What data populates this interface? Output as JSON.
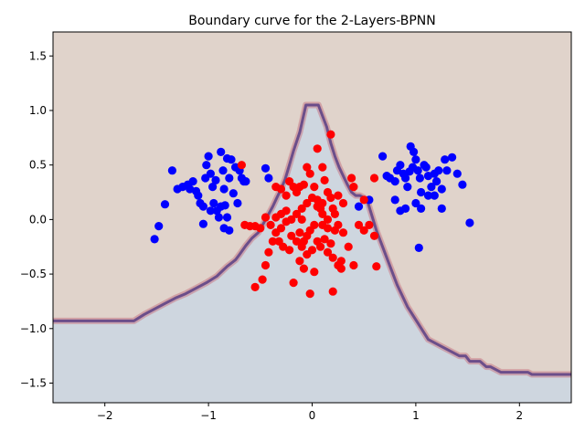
{
  "chart_data": {
    "type": "scatter",
    "title": "Boundary curve for the 2-Layers-BPNN",
    "xlabel": "",
    "ylabel": "",
    "xlim": [
      -2.5,
      2.5
    ],
    "ylim": [
      -1.68,
      1.72
    ],
    "xticks": [
      -2,
      -1,
      0,
      1,
      2
    ],
    "xtick_labels": [
      "−2",
      "−1",
      "0",
      "1",
      "2"
    ],
    "yticks": [
      -1.5,
      -1.0,
      -0.5,
      0.0,
      0.5,
      1.0,
      1.5
    ],
    "ytick_labels": [
      "−1.5",
      "−1.0",
      "−0.5",
      "0.0",
      "0.5",
      "1.0",
      "1.5"
    ],
    "grid": false,
    "legend": "none",
    "colors": {
      "upper_region": "#e0d3cb",
      "lower_region": "#ced6df",
      "boundary": "#6b4e8a",
      "class_blue": "#0000ff",
      "class_red": "#ff0000"
    },
    "boundary_curve": {
      "x": [
        -2.5,
        -1.72,
        -1.62,
        -1.52,
        -1.42,
        -1.32,
        -1.22,
        -1.12,
        -1.02,
        -0.92,
        -0.82,
        -0.74,
        -0.7,
        -0.64,
        -0.58,
        -0.52,
        -0.46,
        -0.42,
        -0.38,
        -0.34,
        -0.3,
        -0.26,
        -0.22,
        -0.18,
        -0.12,
        -0.06,
        0.06,
        0.1,
        0.14,
        0.18,
        0.22,
        0.26,
        0.3,
        0.34,
        0.38,
        0.42,
        0.46,
        0.5,
        0.54,
        0.62,
        0.72,
        0.82,
        0.92,
        1.02,
        1.12,
        1.22,
        1.32,
        1.42,
        1.48,
        1.52,
        1.62,
        1.68,
        1.72,
        1.82,
        1.92,
        2.02,
        2.08,
        2.12,
        2.22,
        2.32,
        2.48,
        2.5
      ],
      "y": [
        -0.93,
        -0.93,
        -0.87,
        -0.82,
        -0.77,
        -0.72,
        -0.68,
        -0.63,
        -0.58,
        -0.52,
        -0.43,
        -0.37,
        -0.32,
        -0.24,
        -0.17,
        -0.12,
        -0.02,
        0.05,
        0.12,
        0.2,
        0.28,
        0.37,
        0.5,
        0.63,
        0.8,
        1.05,
        1.05,
        0.95,
        0.85,
        0.7,
        0.58,
        0.48,
        0.4,
        0.32,
        0.25,
        0.22,
        0.22,
        0.2,
        0.15,
        -0.1,
        -0.35,
        -0.6,
        -0.8,
        -0.95,
        -1.1,
        -1.15,
        -1.2,
        -1.25,
        -1.25,
        -1.3,
        -1.3,
        -1.35,
        -1.35,
        -1.4,
        -1.4,
        -1.4,
        -1.4,
        -1.42,
        -1.42,
        -1.42,
        -1.42,
        -1.42
      ]
    },
    "series": [
      {
        "color": "blue",
        "points": [
          [
            -1.35,
            0.45
          ],
          [
            -1.3,
            0.28
          ],
          [
            -1.25,
            0.3
          ],
          [
            -1.2,
            0.32
          ],
          [
            -1.18,
            0.28
          ],
          [
            -1.15,
            0.35
          ],
          [
            -1.12,
            0.26
          ],
          [
            -1.1,
            0.22
          ],
          [
            -1.08,
            0.15
          ],
          [
            -1.05,
            0.12
          ],
          [
            -1.03,
            0.38
          ],
          [
            -1.02,
            0.5
          ],
          [
            -1.0,
            0.58
          ],
          [
            -0.98,
            0.42
          ],
          [
            -0.96,
            0.3
          ],
          [
            -0.95,
            0.15
          ],
          [
            -0.93,
            0.36
          ],
          [
            -0.92,
            0.08
          ],
          [
            -0.9,
            0.02
          ],
          [
            -0.88,
            0.62
          ],
          [
            -0.86,
            0.45
          ],
          [
            -0.85,
            0.28
          ],
          [
            -0.84,
            0.13
          ],
          [
            -0.82,
            0.56
          ],
          [
            -0.8,
            0.38
          ],
          [
            -0.78,
            0.55
          ],
          [
            -0.76,
            0.24
          ],
          [
            -0.74,
            0.48
          ],
          [
            -0.72,
            0.15
          ],
          [
            -0.7,
            0.45
          ],
          [
            -0.68,
            0.38
          ],
          [
            -0.66,
            0.35
          ],
          [
            -0.64,
            0.35
          ],
          [
            -1.52,
            -0.18
          ],
          [
            -1.48,
            -0.06
          ],
          [
            -1.42,
            0.14
          ],
          [
            -1.05,
            -0.04
          ],
          [
            -0.98,
            0.08
          ],
          [
            -0.88,
            0.12
          ],
          [
            -0.82,
            0.02
          ],
          [
            -0.45,
            0.47
          ],
          [
            -0.42,
            0.38
          ],
          [
            -0.8,
            -0.1
          ],
          [
            -0.85,
            -0.08
          ],
          [
            0.68,
            0.58
          ],
          [
            0.72,
            0.4
          ],
          [
            0.75,
            0.38
          ],
          [
            0.8,
            0.35
          ],
          [
            0.82,
            0.45
          ],
          [
            0.85,
            0.5
          ],
          [
            0.88,
            0.42
          ],
          [
            0.9,
            0.38
          ],
          [
            0.92,
            0.3
          ],
          [
            0.95,
            0.67
          ],
          [
            0.97,
            0.48
          ],
          [
            1.0,
            0.55
          ],
          [
            1.02,
            0.45
          ],
          [
            1.04,
            0.38
          ],
          [
            1.05,
            0.25
          ],
          [
            1.08,
            0.5
          ],
          [
            1.1,
            0.48
          ],
          [
            1.12,
            0.4
          ],
          [
            1.15,
            0.3
          ],
          [
            1.18,
            0.22
          ],
          [
            1.2,
            0.35
          ],
          [
            1.22,
            0.45
          ],
          [
            1.25,
            0.28
          ],
          [
            1.28,
            0.55
          ],
          [
            1.3,
            0.45
          ],
          [
            1.35,
            0.57
          ],
          [
            1.4,
            0.42
          ],
          [
            1.45,
            0.32
          ],
          [
            1.52,
            -0.03
          ],
          [
            1.03,
            -0.26
          ],
          [
            0.8,
            0.18
          ],
          [
            0.85,
            0.08
          ],
          [
            0.9,
            0.1
          ],
          [
            1.0,
            0.15
          ],
          [
            1.05,
            0.1
          ],
          [
            1.25,
            0.1
          ],
          [
            0.45,
            0.12
          ],
          [
            0.55,
            0.18
          ],
          [
            1.12,
            0.22
          ],
          [
            0.98,
            0.62
          ],
          [
            1.18,
            0.42
          ],
          [
            0.94,
            0.44
          ]
        ]
      },
      {
        "color": "red",
        "points": [
          [
            0.18,
            0.78
          ],
          [
            0.05,
            0.65
          ],
          [
            -0.05,
            0.48
          ],
          [
            -0.02,
            0.42
          ],
          [
            0.02,
            0.3
          ],
          [
            -0.08,
            0.32
          ],
          [
            -0.12,
            0.3
          ],
          [
            -0.15,
            0.25
          ],
          [
            -0.18,
            0.3
          ],
          [
            -0.22,
            0.35
          ],
          [
            -0.25,
            0.22
          ],
          [
            -0.3,
            0.28
          ],
          [
            -0.35,
            0.3
          ],
          [
            0.1,
            0.48
          ],
          [
            0.12,
            0.36
          ],
          [
            0.15,
            0.25
          ],
          [
            0.18,
            0.2
          ],
          [
            0.2,
            0.1
          ],
          [
            0.25,
            0.22
          ],
          [
            0.3,
            0.15
          ],
          [
            0.05,
            0.18
          ],
          [
            0.08,
            0.1
          ],
          [
            0.1,
            0.05
          ],
          [
            0.0,
            0.2
          ],
          [
            -0.05,
            0.15
          ],
          [
            -0.1,
            0.1
          ],
          [
            -0.15,
            0.05
          ],
          [
            -0.2,
            0.0
          ],
          [
            -0.25,
            -0.02
          ],
          [
            -0.3,
            0.05
          ],
          [
            -0.35,
            0.02
          ],
          [
            -0.4,
            -0.05
          ],
          [
            -0.45,
            0.02
          ],
          [
            -0.5,
            -0.08
          ],
          [
            -0.55,
            -0.06
          ],
          [
            -0.6,
            -0.06
          ],
          [
            -0.65,
            -0.05
          ],
          [
            -0.68,
            0.5
          ],
          [
            0.38,
            0.38
          ],
          [
            0.4,
            0.3
          ],
          [
            0.5,
            0.18
          ],
          [
            0.6,
            0.38
          ],
          [
            0.02,
            -0.05
          ],
          [
            -0.02,
            -0.1
          ],
          [
            -0.05,
            -0.15
          ],
          [
            -0.08,
            -0.2
          ],
          [
            -0.1,
            -0.25
          ],
          [
            -0.15,
            -0.2
          ],
          [
            -0.2,
            -0.15
          ],
          [
            -0.22,
            -0.28
          ],
          [
            -0.28,
            -0.25
          ],
          [
            -0.32,
            -0.2
          ],
          [
            -0.38,
            -0.2
          ],
          [
            -0.42,
            -0.3
          ],
          [
            -0.45,
            -0.42
          ],
          [
            -0.48,
            -0.55
          ],
          [
            0.05,
            -0.2
          ],
          [
            0.08,
            -0.25
          ],
          [
            0.12,
            -0.18
          ],
          [
            0.15,
            -0.3
          ],
          [
            0.2,
            -0.35
          ],
          [
            0.25,
            -0.42
          ],
          [
            0.28,
            -0.38
          ],
          [
            0.22,
            -0.1
          ],
          [
            0.25,
            -0.05
          ],
          [
            0.3,
            -0.12
          ],
          [
            0.35,
            -0.25
          ],
          [
            0.4,
            -0.42
          ],
          [
            0.45,
            -0.05
          ],
          [
            0.5,
            -0.1
          ],
          [
            0.6,
            -0.15
          ],
          [
            0.62,
            -0.43
          ],
          [
            0.55,
            -0.05
          ],
          [
            0.02,
            -0.48
          ],
          [
            -0.02,
            -0.68
          ],
          [
            -0.08,
            -0.45
          ],
          [
            -0.12,
            -0.38
          ],
          [
            -0.18,
            -0.58
          ],
          [
            0.2,
            -0.66
          ],
          [
            -0.55,
            -0.62
          ],
          [
            0.0,
            -0.28
          ],
          [
            -0.05,
            -0.32
          ],
          [
            0.1,
            -0.05
          ],
          [
            0.15,
            0.0
          ],
          [
            0.18,
            -0.22
          ],
          [
            -0.1,
            0.0
          ],
          [
            -0.25,
            0.08
          ],
          [
            0.05,
            0.12
          ],
          [
            0.28,
            -0.45
          ],
          [
            -0.3,
            -0.08
          ],
          [
            -0.35,
            -0.12
          ],
          [
            0.1,
            0.15
          ],
          [
            0.22,
            0.05
          ],
          [
            0.15,
            -0.08
          ],
          [
            -0.12,
            -0.12
          ]
        ]
      }
    ]
  }
}
